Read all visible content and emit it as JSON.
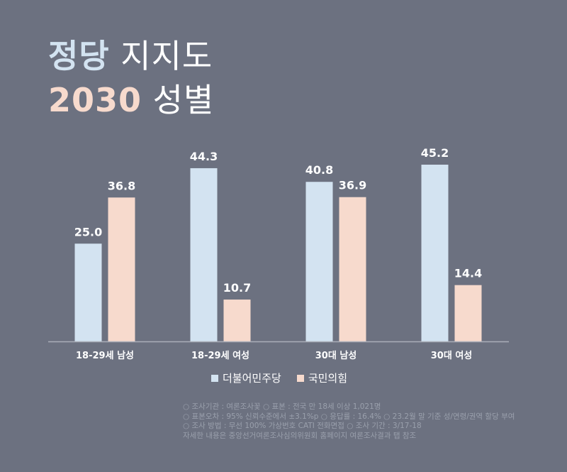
{
  "title": {
    "line1_highlight": "정당",
    "line1_rest": " 지지도",
    "line2_highlight": "2030",
    "line2_rest": " 성별"
  },
  "colors": {
    "background": "#6c7180",
    "title_highlight_1": "#d3e3f1",
    "title_highlight_2": "#f7dacd",
    "series_1": "#d3e3f1",
    "series_2": "#f7dacd",
    "axis": "#a9adb8",
    "text": "#ffffff",
    "note": "#9aa0ac"
  },
  "chart_data": {
    "type": "bar",
    "title": "정당 지지도 2030 성별",
    "categories": [
      "18-29세 남성",
      "18-29세 여성",
      "30대 남성",
      "30대 여성"
    ],
    "series": [
      {
        "name": "더불어민주당",
        "values": [
          25.0,
          44.3,
          40.8,
          45.2
        ]
      },
      {
        "name": "국민의힘",
        "values": [
          36.8,
          10.7,
          36.9,
          14.4
        ]
      }
    ],
    "xlabel": "",
    "ylabel": "",
    "ylim": [
      0,
      50
    ],
    "grid": false,
    "legend": "bottom-center"
  },
  "notes": [
    "○ 조사기관 : 여론조사꽃  ○ 표본 : 전국 만 18세 이상 1,021명",
    "○ 표본오차 : 95% 신뢰수준에서 ±3.1%p ○ 응답률 : 16.4% ○ 23.2월 말 기준 성/연령/권역 할당 부여",
    "○ 조사 방법 : 무선 100% 가상번호 CATI 전화면접 ○ 조사 기간 : 3/17-18",
    "자세한 내용은 중앙선거여론조사심의위원회 홈페이지 여론조사결과 탭 참조"
  ]
}
